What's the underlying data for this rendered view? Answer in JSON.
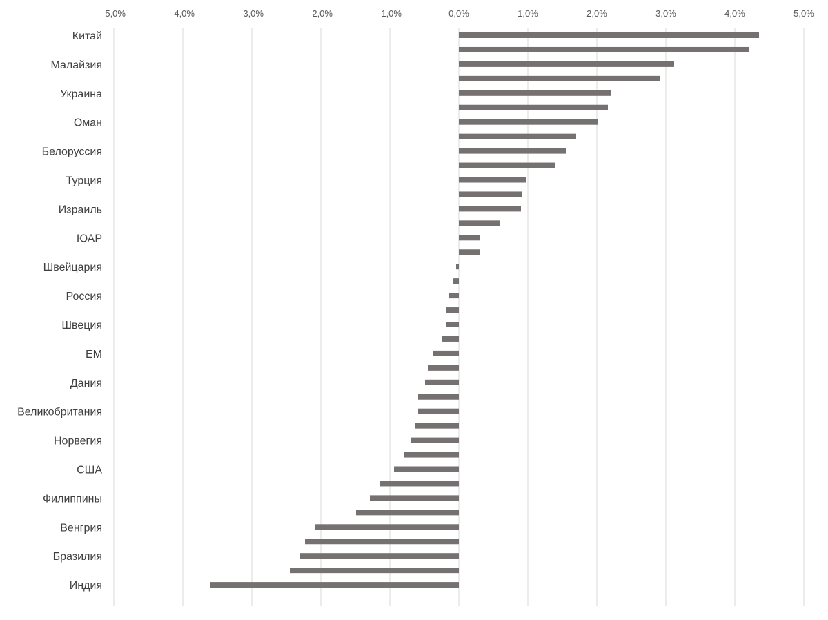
{
  "chart_data": {
    "type": "bar",
    "orientation": "horizontal",
    "title": "",
    "xlabel": "",
    "ylabel": "",
    "xlim": [
      -0.05,
      0.05
    ],
    "x_ticks": [
      -0.05,
      -0.04,
      -0.03,
      -0.02,
      -0.01,
      0,
      0.01,
      0.02,
      0.03,
      0.04,
      0.05
    ],
    "x_tick_labels": [
      "-5,0%",
      "-4,0%",
      "-3,0%",
      "-2,0%",
      "-1,0%",
      "0,0%",
      "1,0%",
      "2,0%",
      "3,0%",
      "4,0%",
      "5,0%"
    ],
    "x_axis_position": "top",
    "grid": true,
    "legend": "none",
    "bar_color": "#767171",
    "grid_color": "#d9d9d9",
    "categories": [
      "Китай",
      "",
      "Малайзия",
      "",
      "Украина",
      "",
      "Оман",
      "",
      "Белоруссия",
      "",
      "Турция",
      "",
      "Израиль",
      "",
      "ЮАР",
      "",
      "Швейцария",
      "",
      "Россия",
      "",
      "Швеция",
      "",
      "EM",
      "",
      "Дания",
      "",
      "Великобритания",
      "",
      "Норвегия",
      "",
      "США",
      "",
      "Филиппины",
      "",
      "Венгрия",
      "",
      "Бразилия",
      "",
      "Индия"
    ],
    "values": [
      0.0435,
      0.042,
      0.0312,
      0.0292,
      0.022,
      0.0216,
      0.0201,
      0.017,
      0.0155,
      0.014,
      0.0097,
      0.0091,
      0.009,
      0.006,
      0.003,
      0.003,
      -0.0004,
      -0.0009,
      -0.0014,
      -0.0019,
      -0.0019,
      -0.0025,
      -0.0038,
      -0.0044,
      -0.0049,
      -0.0059,
      -0.0059,
      -0.0064,
      -0.0069,
      -0.0079,
      -0.0094,
      -0.0114,
      -0.0129,
      -0.0149,
      -0.0209,
      -0.0223,
      -0.023,
      -0.0244,
      -0.036
    ]
  }
}
